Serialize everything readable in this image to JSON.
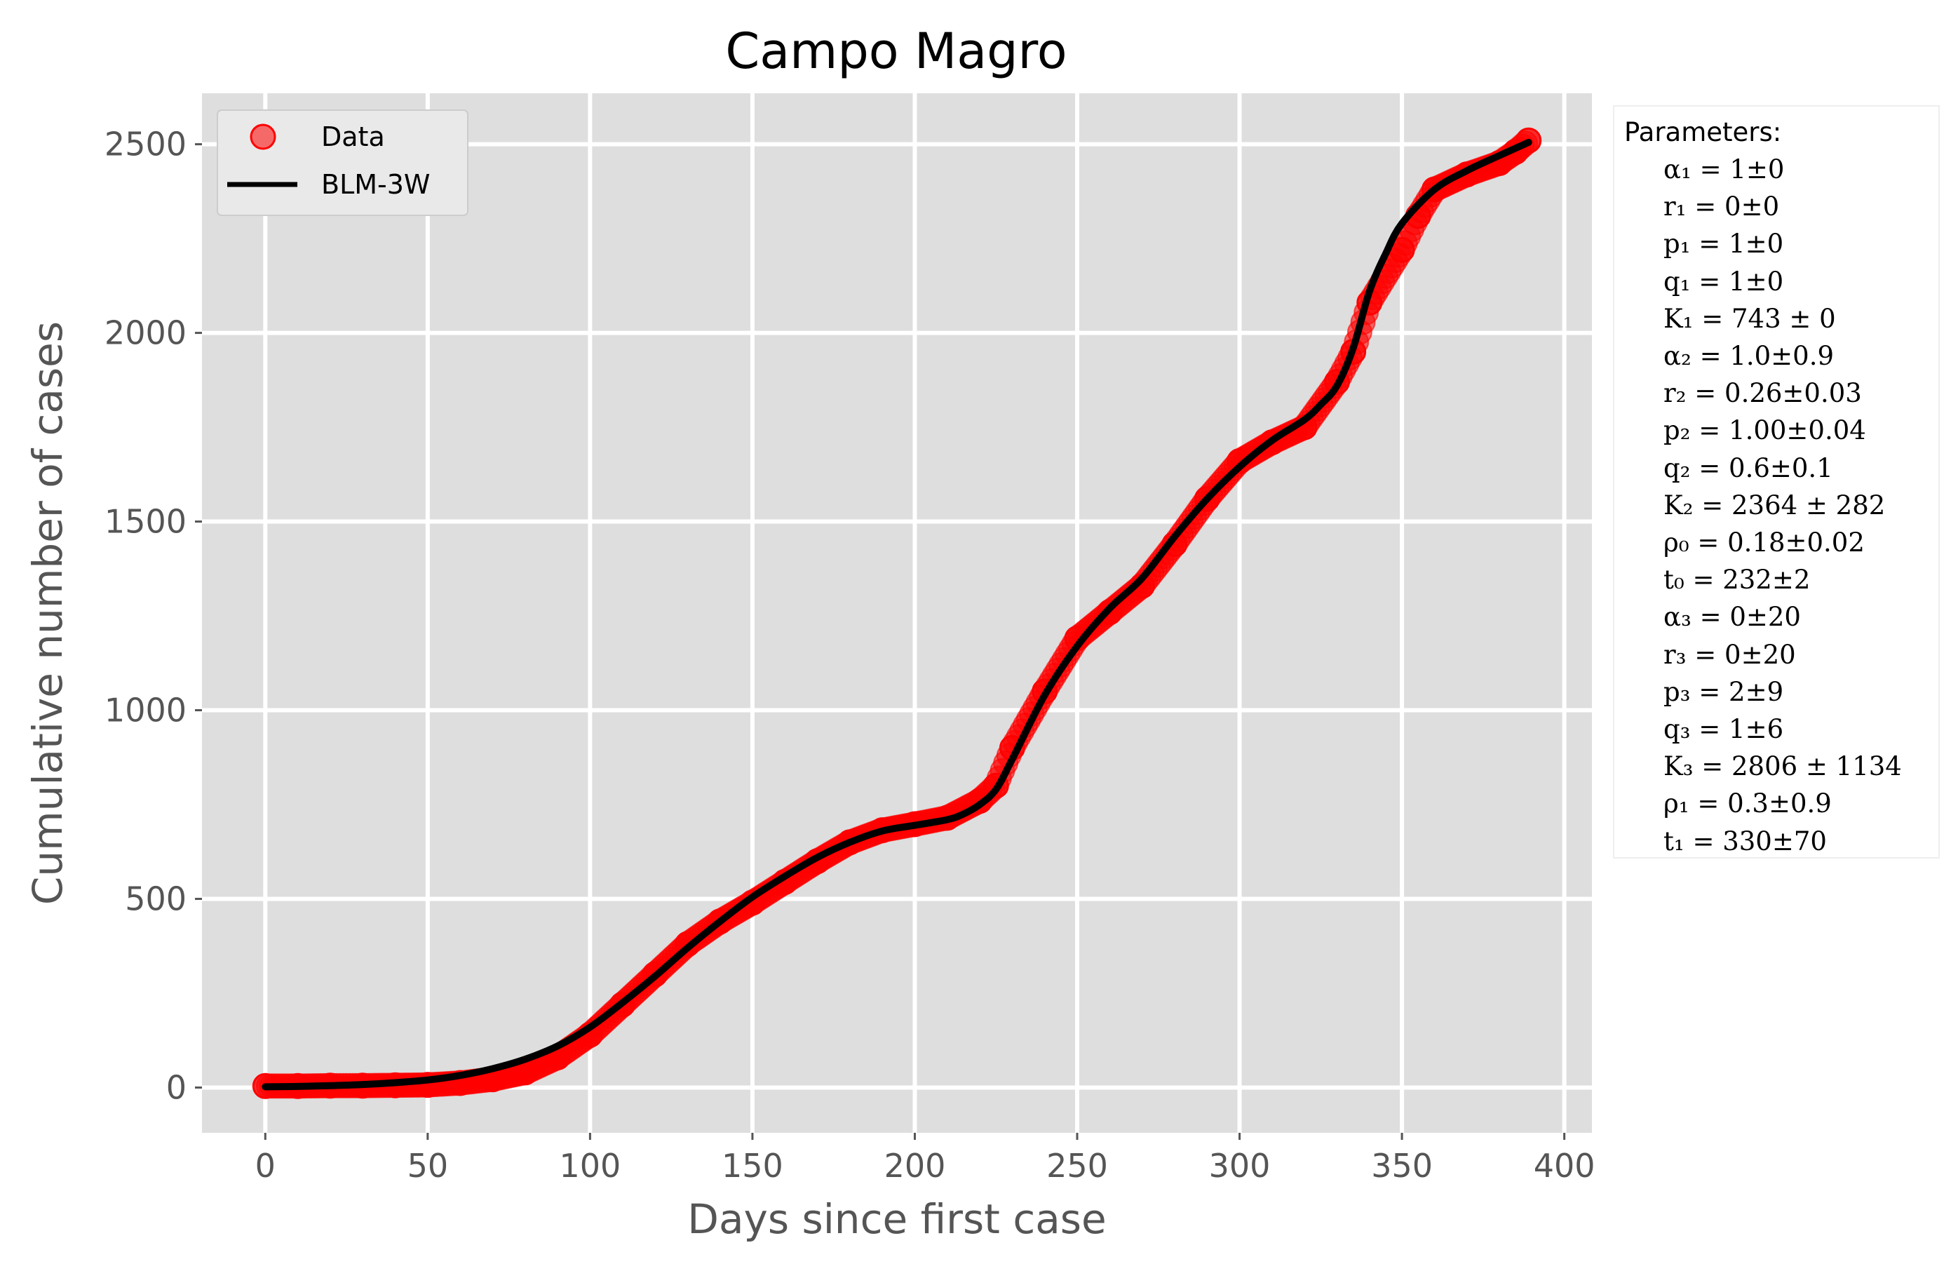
{
  "chart_data": {
    "type": "scatter",
    "title": "Campo Magro",
    "xlabel": "Days since first case",
    "ylabel": "Cumulative  number of cases",
    "xlim": [
      -19.5,
      408.5
    ],
    "ylim": [
      -120,
      2635
    ],
    "x_ticks": [
      0,
      50,
      100,
      150,
      200,
      250,
      300,
      350,
      400
    ],
    "y_ticks": [
      0,
      500,
      1000,
      1500,
      2000,
      2500
    ],
    "grid": true,
    "background": "#dedede",
    "legend_position": "upper-left",
    "series": [
      {
        "name": "Data",
        "style": "markers",
        "color": "#ff0000",
        "x": [
          0,
          10,
          20,
          30,
          40,
          50,
          60,
          70,
          80,
          90,
          100,
          110,
          120,
          130,
          140,
          150,
          160,
          170,
          180,
          190,
          200,
          210,
          220,
          225,
          230,
          240,
          250,
          260,
          270,
          280,
          290,
          300,
          310,
          320,
          330,
          335,
          340,
          350,
          355,
          360,
          370,
          380,
          385,
          389
        ],
        "y": [
          4,
          4,
          5,
          5,
          6,
          7,
          12,
          22,
          40,
          80,
          140,
          220,
          300,
          380,
          440,
          490,
          545,
          600,
          650,
          682,
          698,
          715,
          760,
          800,
          900,
          1050,
          1190,
          1260,
          1330,
          1440,
          1560,
          1660,
          1710,
          1750,
          1870,
          1950,
          2080,
          2220,
          2310,
          2380,
          2420,
          2450,
          2480,
          2510
        ]
      },
      {
        "name": "BLM-3W",
        "style": "line",
        "color": "#000000",
        "x": [
          0,
          10,
          20,
          30,
          40,
          50,
          60,
          70,
          80,
          90,
          100,
          110,
          120,
          130,
          140,
          150,
          160,
          170,
          180,
          190,
          200,
          210,
          215,
          220,
          225,
          230,
          240,
          250,
          260,
          270,
          280,
          290,
          300,
          310,
          320,
          325,
          330,
          335,
          340,
          345,
          350,
          360,
          370,
          380,
          389
        ],
        "y": [
          2,
          3,
          5,
          8,
          13,
          20,
          32,
          50,
          75,
          110,
          160,
          225,
          295,
          370,
          440,
          505,
          560,
          610,
          650,
          680,
          695,
          710,
          725,
          750,
          790,
          870,
          1040,
          1170,
          1270,
          1350,
          1460,
          1560,
          1645,
          1715,
          1770,
          1810,
          1860,
          1960,
          2110,
          2210,
          2290,
          2380,
          2430,
          2470,
          2505
        ]
      }
    ],
    "legend": [
      {
        "label": "Data",
        "kind": "marker",
        "color": "#ff0000"
      },
      {
        "label": "BLM-3W",
        "kind": "line",
        "color": "#000000"
      }
    ],
    "parameters_title": "Parameters:",
    "parameters": [
      "α₁ = 1±0",
      "r₁ = 0±0",
      "p₁ = 1±0",
      "q₁ = 1±0",
      "K₁ = 743 ± 0",
      "α₂ = 1.0±0.9",
      "r₂ = 0.26±0.03",
      "p₂ = 1.00±0.04",
      "q₂ = 0.6±0.1",
      "K₂ = 2364 ± 282",
      "ρ₀ = 0.18±0.02",
      "t₀ = 232±2",
      "α₃ = 0±20",
      "r₃ = 0±20",
      "p₃ = 2±9",
      "q₃ = 1±6",
      "K₃ = 2806 ± 1134",
      "ρ₁ = 0.3±0.9",
      "t₁ = 330±70"
    ]
  }
}
